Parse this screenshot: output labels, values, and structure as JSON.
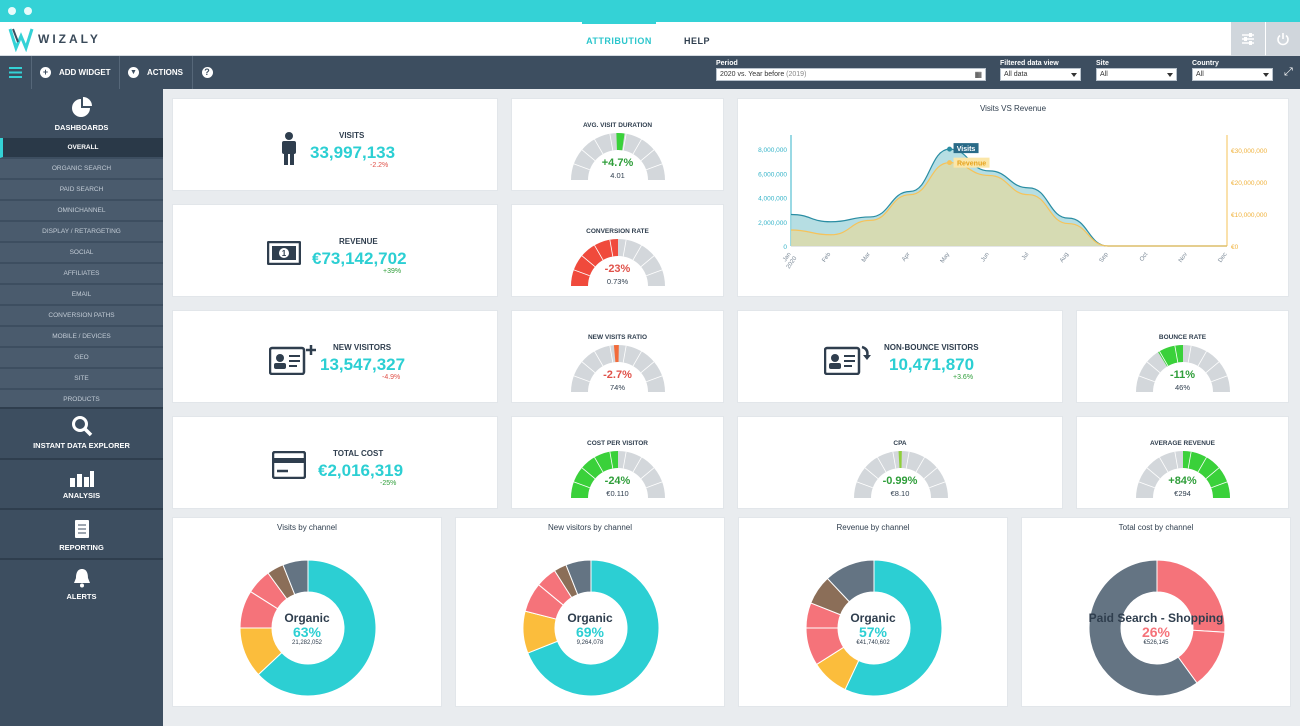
{
  "brand": {
    "name": "WIZALY",
    "accent": "#34d2d6"
  },
  "nav": {
    "tabs": [
      {
        "label": "ATTRIBUTION"
      },
      {
        "label": "HELP"
      }
    ]
  },
  "toolbar": {
    "add_widget": "ADD WIDGET",
    "actions": "ACTIONS",
    "help_symbol": "?",
    "filters": {
      "period": {
        "label": "Period",
        "value": "2020 vs. Year before",
        "secondary": "(2019)"
      },
      "data_view": {
        "label": "Filtered data view",
        "value": "All data"
      },
      "site": {
        "label": "Site",
        "value": "All"
      },
      "country": {
        "label": "Country",
        "value": "All"
      }
    }
  },
  "sidebar": {
    "dashboards": "DASHBOARDS",
    "items": [
      "OVERALL",
      "ORGANIC SEARCH",
      "PAID SEARCH",
      "OMNICHANNEL",
      "DISPLAY / RETARGETING",
      "SOCIAL",
      "AFFILIATES",
      "EMAIL",
      "CONVERSION PATHS",
      "MOBILE / DEVICES",
      "GEO",
      "SITE",
      "PRODUCTS"
    ],
    "explorer": "INSTANT DATA EXPLORER",
    "analysis": "ANALYSIS",
    "reporting": "REPORTING",
    "alerts": "ALERTS"
  },
  "kpis": {
    "visits": {
      "label": "VISITS",
      "value": "33,997,133",
      "delta": "-2.2%"
    },
    "revenue": {
      "label": "REVENUE",
      "value": "€73,142,702",
      "delta": "+39%"
    },
    "new_visitors": {
      "label": "NEW VISITORS",
      "value": "13,547,327",
      "delta": "-4.9%"
    },
    "non_bounce": {
      "label": "NON-BOUNCE VISITORS",
      "value": "10,471,870",
      "delta": "+3.6%"
    },
    "total_cost": {
      "label": "TOTAL COST",
      "value": "€2,016,319",
      "delta": "-25%"
    }
  },
  "gauges": {
    "avg_visit_duration": {
      "title": "AVG. VISIT DURATION",
      "pct": "+4.7%",
      "value": "4.01"
    },
    "conversion_rate": {
      "title": "CONVERSION RATE",
      "pct": "-23%",
      "value": "0.73%"
    },
    "new_visits_ratio": {
      "title": "NEW VISITS RATIO",
      "pct": "-2.7%",
      "value": "74%"
    },
    "bounce_rate": {
      "title": "BOUNCE RATE",
      "pct": "-11%",
      "value": "46%"
    },
    "cost_per_visitor": {
      "title": "COST PER VISITOR",
      "pct": "-24%",
      "value": "€0.110"
    },
    "cpa": {
      "title": "CPA",
      "pct": "-0.99%",
      "value": "€8.10"
    },
    "average_revenue": {
      "title": "AVERAGE REVENUE",
      "pct": "+84%",
      "value": "€294"
    }
  },
  "line_chart": {
    "title": "Visits VS Revenue",
    "left_ticks": [
      "8,000,000",
      "6,000,000",
      "4,000,000",
      "2,000,000",
      "0"
    ],
    "right_ticks": [
      "€30,000,000",
      "€20,000,000",
      "€10,000,000",
      "€0"
    ],
    "months": [
      "Jan 2020",
      "Feb",
      "Mar",
      "Apr",
      "May",
      "Jun",
      "Jul",
      "Aug",
      "Sep",
      "Oct",
      "Nov",
      "Dec"
    ],
    "visits_label": "Visits",
    "revenue_label": "Revenue"
  },
  "chart_data": {
    "type": "area",
    "title": "Visits VS Revenue",
    "categories": [
      "Jan 2020",
      "Feb",
      "Mar",
      "Apr",
      "May",
      "Jun",
      "Jul",
      "Aug",
      "Sep",
      "Oct",
      "Nov",
      "Dec"
    ],
    "series": [
      {
        "name": "Visits",
        "axis": "left",
        "values": [
          2600000,
          2000000,
          2400000,
          4500000,
          8000000,
          6200000,
          4800000,
          2300000,
          0,
          0,
          0,
          0
        ]
      },
      {
        "name": "Revenue",
        "axis": "right",
        "values": [
          5000000,
          3500000,
          8000000,
          16000000,
          26000000,
          22000000,
          16000000,
          7000000,
          0,
          0,
          0,
          0
        ]
      }
    ],
    "ylim_left": [
      0,
      9000000
    ],
    "ylim_right": [
      0,
      34000000
    ]
  },
  "pies": [
    {
      "title": "Visits by channel",
      "label": "Organic",
      "pct": "63%",
      "sub": "21,282,052"
    },
    {
      "title": "New visitors by channel",
      "label": "Organic",
      "pct": "69%",
      "sub": "9,264,078"
    },
    {
      "title": "Revenue by channel",
      "label": "Organic",
      "pct": "57%",
      "sub": "€41,740,602"
    },
    {
      "title": "Total cost by channel",
      "label": "Paid Search - Shopping",
      "pct": "26%",
      "sub": "€526,145"
    }
  ],
  "colors": {
    "teal": "#2ccfd3",
    "orange": "#fbbd3c",
    "pink": "#f5737a",
    "brown": "#8b6e58",
    "slate": "#647483",
    "gauge_green": "#3ad13a",
    "gauge_red": "#f04a3c"
  }
}
